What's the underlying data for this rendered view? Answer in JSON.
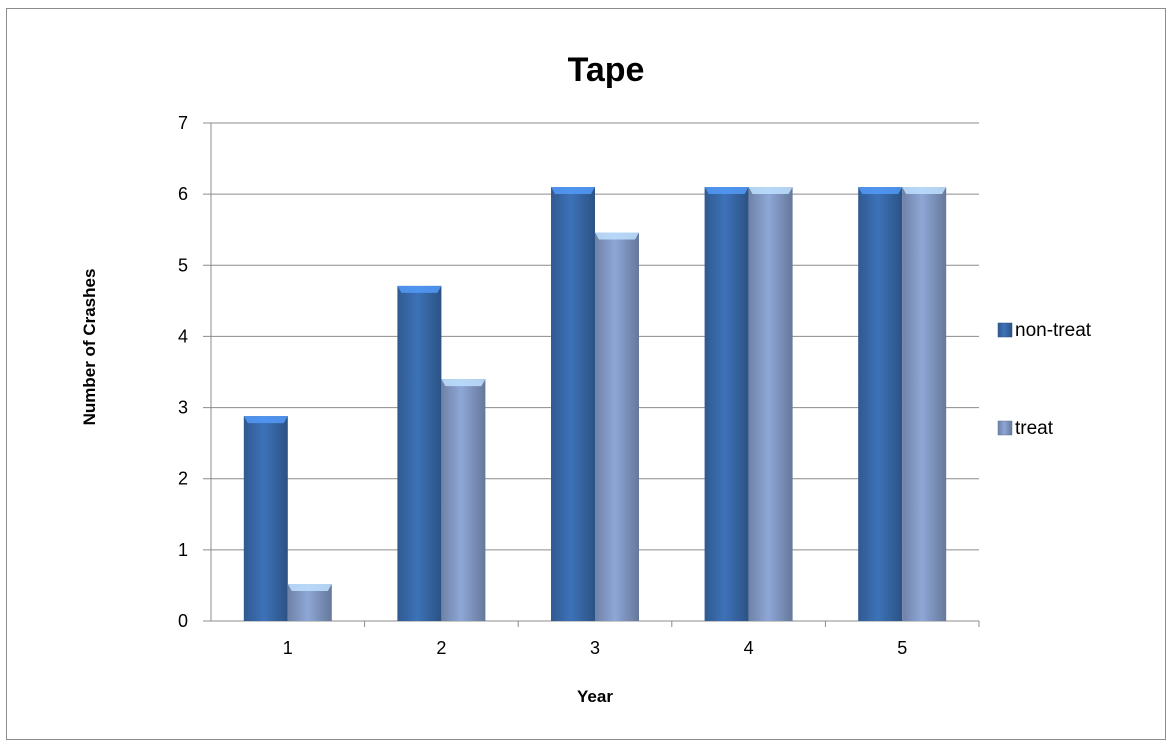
{
  "chart_data": {
    "type": "bar",
    "title": "Tape",
    "xlabel": "Year",
    "ylabel": "Number of Crashes",
    "categories": [
      "1",
      "2",
      "3",
      "4",
      "5"
    ],
    "series": [
      {
        "name": "non-treat",
        "values": [
          2.88,
          4.71,
          6.1,
          6.1,
          6.1
        ],
        "color": "#3d72b8"
      },
      {
        "name": "treat",
        "values": [
          0.52,
          3.4,
          5.46,
          6.1,
          6.1
        ],
        "color": "#8ea7d6"
      }
    ],
    "ylim": [
      0,
      7
    ],
    "yticks": [
      "0",
      "1",
      "2",
      "3",
      "4",
      "5",
      "6",
      "7"
    ],
    "grid": true,
    "legend": "right"
  }
}
